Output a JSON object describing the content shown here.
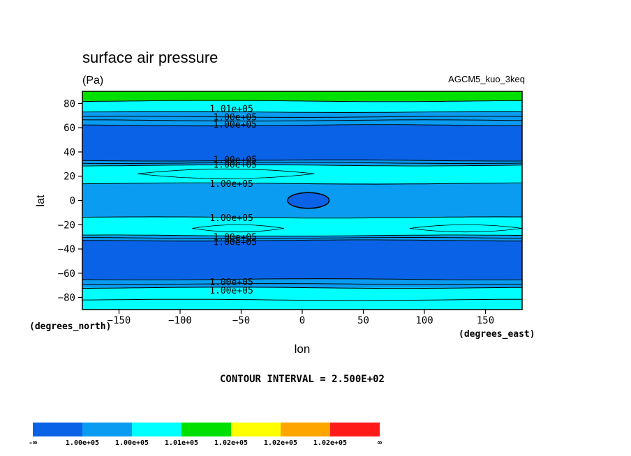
{
  "chart_data": {
    "type": "heatmap",
    "subtype": "filled-contour",
    "title": "surface air pressure",
    "units": "(Pa)",
    "model_label": "AGCM5_kuo_3keq",
    "xlabel": "lon",
    "ylabel": "lat",
    "x_units_label": "(degrees_east)",
    "y_units_label": "(degrees_north)",
    "xlim": [
      -180,
      180
    ],
    "ylim": [
      -90,
      90
    ],
    "x_ticks": [
      -150,
      -100,
      -50,
      0,
      50,
      100,
      150
    ],
    "y_ticks": [
      -80,
      -60,
      -40,
      -20,
      0,
      20,
      40,
      60,
      80
    ],
    "contour_interval_text": "CONTOUR INTERVAL = 2.500E+02",
    "colorbar": {
      "colors": [
        "#0a63e6",
        "#0a9cf0",
        "#00ffff",
        "#00e000",
        "#ffff00",
        "#ffa500",
        "#ff1a1a"
      ],
      "labels": [
        "-∞",
        "1.00e+05",
        "1.00e+05",
        "1.01e+05",
        "1.02e+05",
        "1.02e+05",
        "1.02e+05",
        "∞"
      ]
    },
    "bands": [
      {
        "lat_top": 90,
        "lat_bottom": 82,
        "level": 3
      },
      {
        "lat_top": 82,
        "lat_bottom": 73,
        "level": 2
      },
      {
        "lat_top": 73,
        "lat_bottom": 66,
        "level": 1
      },
      {
        "lat_top": 66,
        "lat_bottom": 62,
        "level": 1
      },
      {
        "lat_top": 62,
        "lat_bottom": 33,
        "level": 0
      },
      {
        "lat_top": 33,
        "lat_bottom": 29,
        "level": 1
      },
      {
        "lat_top": 29,
        "lat_bottom": 14,
        "level": 2
      },
      {
        "lat_top": 14,
        "lat_bottom": -14,
        "level": 1
      },
      {
        "lat_top": -14,
        "lat_bottom": -29,
        "level": 2
      },
      {
        "lat_top": -29,
        "lat_bottom": -33,
        "level": 1
      },
      {
        "lat_top": -33,
        "lat_bottom": -65,
        "level": 0
      },
      {
        "lat_top": -65,
        "lat_bottom": -72,
        "level": 1
      },
      {
        "lat_top": -72,
        "lat_bottom": -90,
        "level": 2
      }
    ],
    "contour_lines_lat": [
      82,
      73,
      69,
      66,
      62,
      33,
      31,
      29,
      14,
      -14,
      -29,
      -31,
      -33,
      -65,
      -69,
      -72,
      -82
    ],
    "contour_labels": [
      {
        "text": "1.01e+05",
        "lon": -58,
        "lat": 76
      },
      {
        "text": "1.00e+05",
        "lon": -55,
        "lat": 69
      },
      {
        "text": "1.00e+05",
        "lon": -55,
        "lat": 63
      },
      {
        "text": "1.00e+05",
        "lon": -55,
        "lat": 34
      },
      {
        "text": "1.00e+05",
        "lon": -55,
        "lat": 30
      },
      {
        "text": "1.00e+05",
        "lon": -58,
        "lat": 14
      },
      {
        "text": "1.00e+05",
        "lon": -58,
        "lat": -14
      },
      {
        "text": "1.00e+05",
        "lon": -55,
        "lat": -30
      },
      {
        "text": "1.00e+05",
        "lon": -55,
        "lat": -34
      },
      {
        "text": "1.00e+05",
        "lon": -58,
        "lat": -67
      },
      {
        "text": "1.00e+05",
        "lon": -58,
        "lat": -74
      }
    ],
    "features": [
      {
        "kind": "low_closed_contour",
        "level": 0,
        "lon_center": 5,
        "lat_center": 0,
        "lon_radius": 17,
        "lat_radius": 6.5
      },
      {
        "kind": "sliver",
        "level": 2,
        "lon_start": -135,
        "lon_end": 10,
        "lat": 22,
        "lat_half_width": 4
      },
      {
        "kind": "sliver",
        "level": 2,
        "lon_start": -90,
        "lon_end": -15,
        "lat": -23,
        "lat_half_width": 3
      },
      {
        "kind": "sliver",
        "level": 2,
        "lon_start": 88,
        "lon_end": 180,
        "lat": -23,
        "lat_half_width": 3
      }
    ]
  }
}
